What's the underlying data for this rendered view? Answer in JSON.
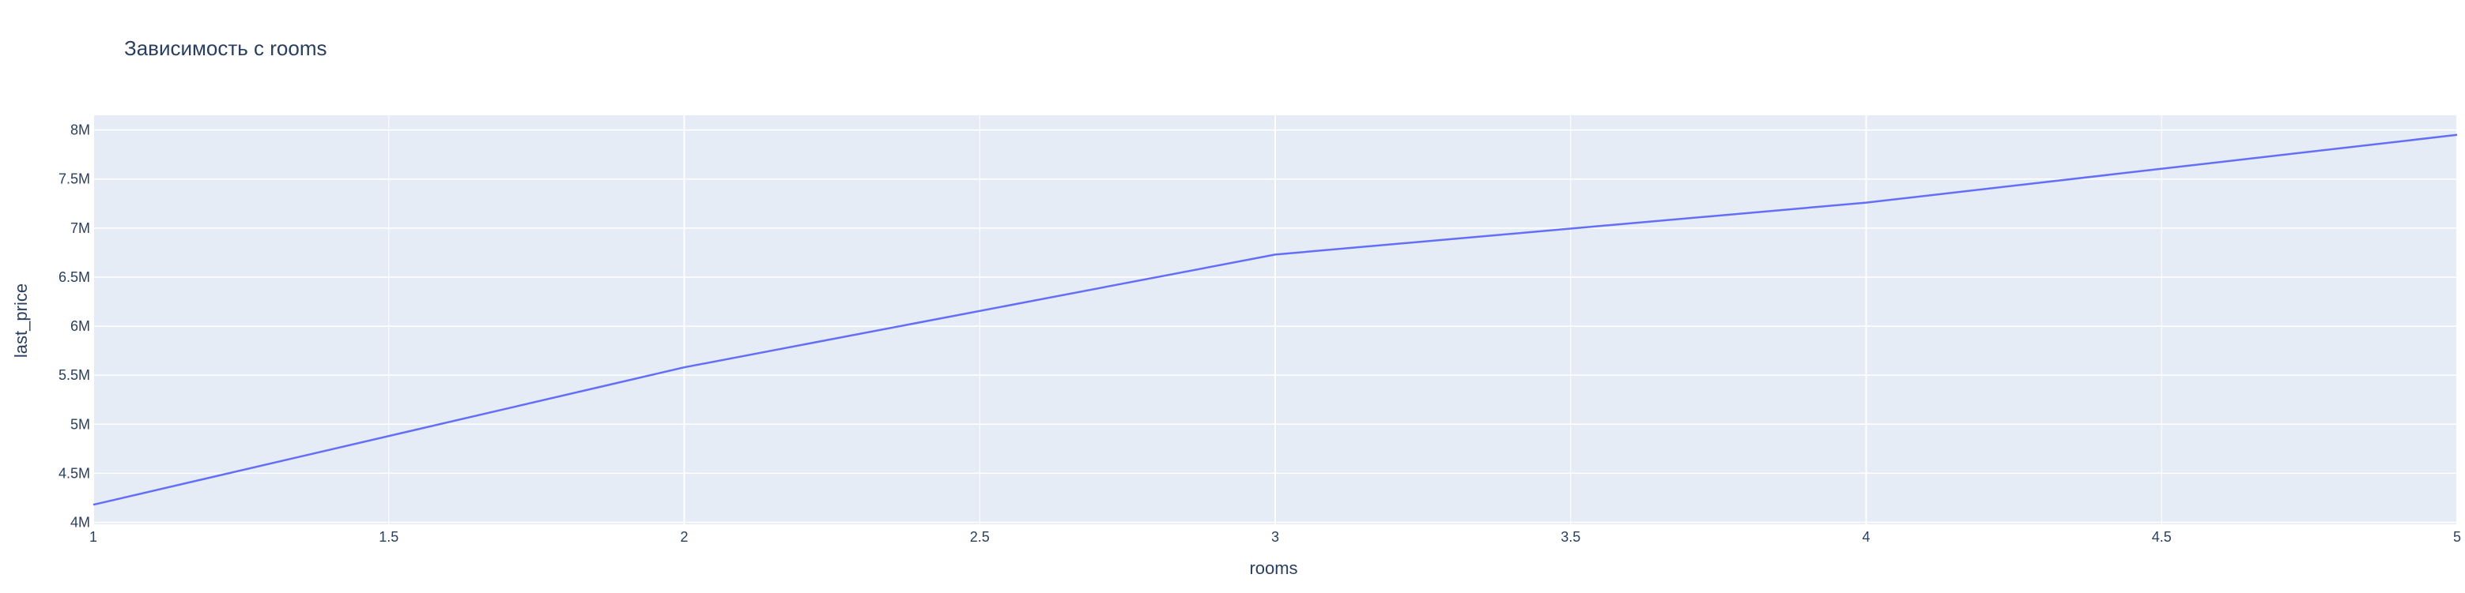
{
  "chart_data": {
    "type": "line",
    "title": "Зависимость с rooms",
    "xlabel": "rooms",
    "ylabel": "last_price",
    "x": [
      1,
      2,
      3,
      4,
      5
    ],
    "series": [
      {
        "values": [
          4180000,
          5580000,
          6730000,
          7260000,
          7950000
        ]
      }
    ],
    "xlim": [
      1,
      5
    ],
    "ylim": [
      3980000,
      8150000
    ],
    "x_ticks": [
      1,
      1.5,
      2,
      2.5,
      3,
      3.5,
      4,
      4.5,
      5
    ],
    "x_tick_labels": [
      "1",
      "1.5",
      "2",
      "2.5",
      "3",
      "3.5",
      "4",
      "4.5",
      "5"
    ],
    "y_ticks": [
      4000000,
      4500000,
      5000000,
      5500000,
      6000000,
      6500000,
      7000000,
      7500000,
      8000000
    ],
    "y_tick_labels": [
      "4M",
      "4.5M",
      "5M",
      "5.5M",
      "6M",
      "6.5M",
      "7M",
      "7.5M",
      "8M"
    ],
    "grid": true,
    "colors": {
      "line": "#636efa",
      "plot_bg": "#e5ecf6",
      "grid": "#ffffff",
      "text": "#2a3f5f"
    }
  }
}
